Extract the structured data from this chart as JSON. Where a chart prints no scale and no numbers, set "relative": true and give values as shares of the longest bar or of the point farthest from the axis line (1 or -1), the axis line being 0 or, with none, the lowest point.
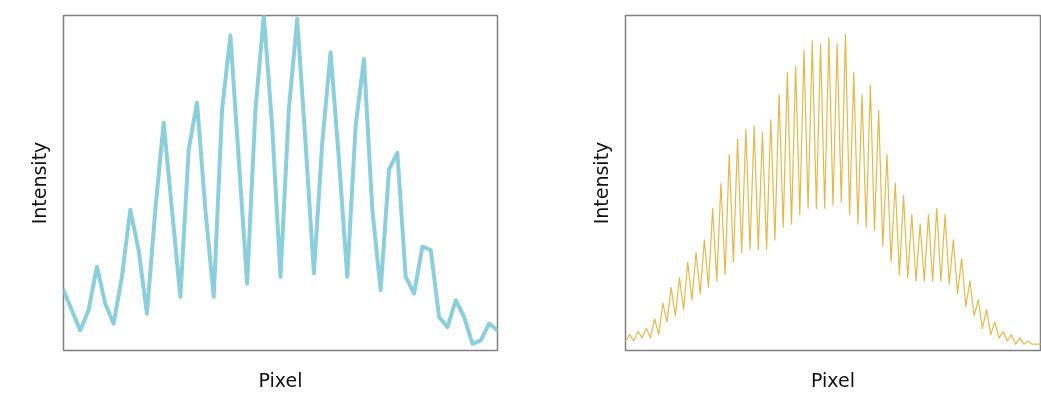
{
  "chart_data": [
    {
      "type": "line",
      "xlabel": "Pixel",
      "ylabel": "Intensity",
      "relative": true,
      "marker": "none",
      "line_style": "solid",
      "categories": [
        null,
        null,
        null,
        null,
        null,
        null,
        null,
        null,
        null,
        null,
        null,
        null,
        null,
        null,
        null,
        null,
        null,
        null,
        null,
        null,
        null,
        null,
        null,
        null,
        null,
        null,
        null,
        null,
        null,
        null,
        null,
        null,
        null,
        null,
        null,
        null,
        null,
        null,
        null,
        null,
        null,
        null,
        null,
        null,
        null,
        null,
        null,
        null,
        null,
        null,
        null,
        null,
        null
      ],
      "series": [
        {
          "color": "#8ccfdc",
          "values": [
            0.18,
            0.12,
            0.06,
            0.12,
            0.25,
            0.14,
            0.08,
            0.22,
            0.42,
            0.3,
            0.11,
            0.42,
            0.68,
            0.42,
            0.16,
            0.6,
            0.74,
            0.42,
            0.16,
            0.72,
            0.94,
            0.57,
            0.2,
            0.72,
            1.0,
            0.67,
            0.22,
            0.72,
            0.99,
            0.62,
            0.23,
            0.62,
            0.89,
            0.57,
            0.22,
            0.67,
            0.87,
            0.42,
            0.18,
            0.54,
            0.59,
            0.22,
            0.17,
            0.31,
            0.3,
            0.1,
            0.07,
            0.15,
            0.1,
            0.02,
            0.03,
            0.08,
            0.06
          ]
        }
      ]
    },
    {
      "type": "line",
      "xlabel": "Pixel",
      "ylabel": "Intensity",
      "relative": true,
      "marker": "none",
      "line_style": "solid",
      "categories": [
        null,
        null,
        null,
        null,
        null,
        null,
        null,
        null,
        null,
        null,
        null,
        null,
        null,
        null,
        null,
        null,
        null,
        null,
        null,
        null,
        null,
        null,
        null,
        null,
        null,
        null,
        null,
        null,
        null,
        null,
        null,
        null,
        null,
        null,
        null,
        null,
        null,
        null,
        null,
        null,
        null,
        null,
        null,
        null,
        null,
        null,
        null,
        null,
        null,
        null,
        null,
        null,
        null,
        null,
        null,
        null,
        null,
        null,
        null,
        null,
        null,
        null,
        null,
        null,
        null,
        null,
        null,
        null,
        null,
        null,
        null,
        null,
        null,
        null,
        null,
        null,
        null,
        null,
        null,
        null,
        null,
        null,
        null,
        null,
        null,
        null,
        null,
        null,
        null,
        null,
        null,
        null,
        null,
        null,
        null,
        null,
        null,
        null,
        null,
        null,
        null
      ],
      "series": [
        {
          "color": "#e3b94a",
          "values": [
            0.03,
            0.05,
            0.03,
            0.06,
            0.04,
            0.07,
            0.04,
            0.1,
            0.05,
            0.15,
            0.09,
            0.2,
            0.11,
            0.23,
            0.13,
            0.28,
            0.16,
            0.31,
            0.18,
            0.35,
            0.2,
            0.45,
            0.22,
            0.53,
            0.24,
            0.62,
            0.28,
            0.67,
            0.31,
            0.7,
            0.32,
            0.71,
            0.32,
            0.69,
            0.32,
            0.73,
            0.35,
            0.81,
            0.39,
            0.88,
            0.4,
            0.9,
            0.43,
            0.95,
            0.45,
            0.98,
            0.45,
            0.97,
            0.45,
            0.99,
            0.46,
            0.97,
            0.47,
            1.0,
            0.43,
            0.88,
            0.4,
            0.81,
            0.39,
            0.84,
            0.38,
            0.76,
            0.33,
            0.62,
            0.28,
            0.53,
            0.24,
            0.49,
            0.23,
            0.43,
            0.22,
            0.4,
            0.22,
            0.43,
            0.22,
            0.45,
            0.22,
            0.43,
            0.21,
            0.35,
            0.18,
            0.29,
            0.14,
            0.22,
            0.11,
            0.16,
            0.07,
            0.13,
            0.05,
            0.09,
            0.04,
            0.06,
            0.03,
            0.05,
            0.02,
            0.04,
            0.02,
            0.03,
            0.02,
            0.02,
            0.02
          ]
        }
      ]
    }
  ]
}
